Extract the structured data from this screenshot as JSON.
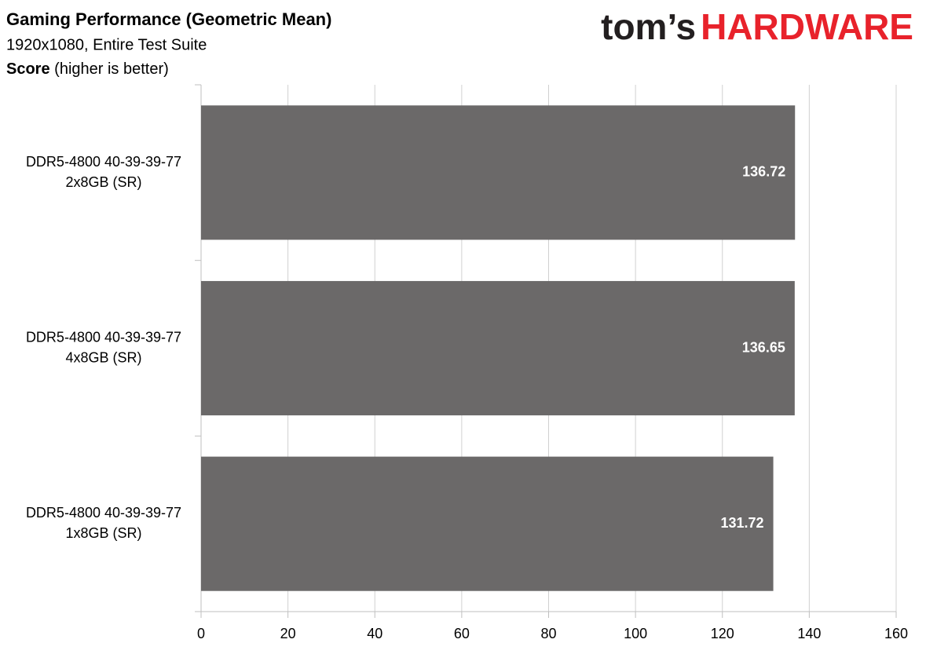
{
  "chart_data": {
    "type": "hbar",
    "title": "Gaming Performance (Geometric Mean)",
    "subtitle": "1920x1080, Entire Test Suite",
    "axis_label": {
      "bold": "Score",
      "text": "(higher is better)"
    },
    "logo": [
      "tom’s",
      "HARDWARE"
    ],
    "categories": [
      "DDR5-4800 40-39-39-77\n2x8GB (SR)",
      "DDR5-4800 40-39-39-77\n4x8GB (SR)",
      "DDR5-4800 40-39-39-77\n1x8GB (SR)"
    ],
    "values": [
      136.72,
      136.65,
      131.72
    ],
    "color": "#6b6969",
    "xlim": [
      0,
      160
    ],
    "xticks": [
      0,
      20,
      40,
      60,
      80,
      100,
      120,
      140,
      160
    ],
    "grid": true
  }
}
